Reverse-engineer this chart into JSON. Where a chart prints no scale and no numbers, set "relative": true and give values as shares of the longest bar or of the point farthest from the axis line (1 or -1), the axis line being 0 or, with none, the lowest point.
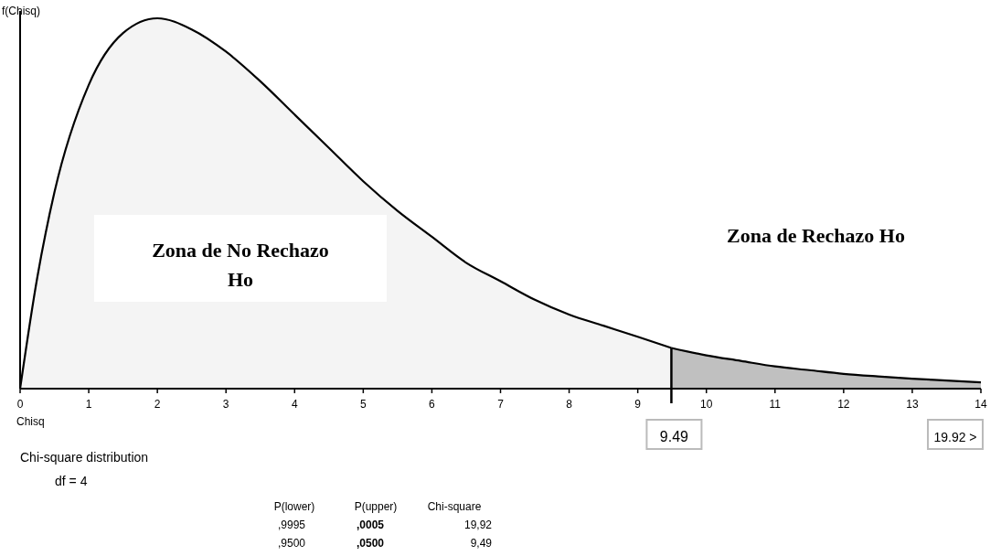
{
  "chart_data": {
    "type": "area",
    "relative": true,
    "xlabel": "Chisq",
    "ylabel": "f(Chisq)",
    "xlim": [
      0,
      14
    ],
    "xticks": [
      0,
      1,
      2,
      3,
      4,
      5,
      6,
      7,
      8,
      9,
      10,
      11,
      12,
      13,
      14
    ],
    "series": [
      {
        "color": "#f4f4f4",
        "x": [
          0,
          0.25,
          0.5,
          1,
          1.5,
          2,
          2.5,
          3,
          3.5,
          4,
          4.5,
          5,
          5.5,
          6,
          6.5,
          7,
          7.5,
          8,
          8.5,
          9,
          9.49
        ],
        "values": [
          0,
          0.3,
          0.53,
          0.82,
          0.96,
          1,
          0.97,
          0.91,
          0.83,
          0.74,
          0.65,
          0.56,
          0.48,
          0.41,
          0.34,
          0.29,
          0.24,
          0.2,
          0.17,
          0.14,
          0.11
        ]
      },
      {
        "color": "#c0c0c0",
        "x": [
          9.49,
          10,
          10.5,
          11,
          11.5,
          12,
          12.5,
          13,
          13.5,
          14
        ],
        "values": [
          0.11,
          0.09,
          0.075,
          0.06,
          0.05,
          0.04,
          0.033,
          0.027,
          0.022,
          0.017
        ]
      }
    ],
    "ref_lines": [
      {
        "axis": "x",
        "value": 9.49,
        "label": "9.49",
        "color": "#000000"
      }
    ],
    "annotations": [
      "Zona de No Rechazo\nHo",
      "Zona de Rechazo Ho",
      "19.92 >",
      "Chi-square distribution",
      "df = 4",
      "P(lower)",
      "P(upper)",
      "Chi-square",
      ",9995",
      ",0005",
      "19,92",
      ",9500",
      ",0500",
      "9,49"
    ]
  }
}
